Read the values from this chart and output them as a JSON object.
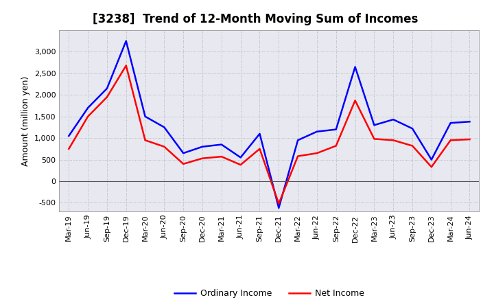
{
  "title": "[3238]  Trend of 12-Month Moving Sum of Incomes",
  "ylabel": "Amount (million yen)",
  "x_labels": [
    "Mar-19",
    "Jun-19",
    "Sep-19",
    "Dec-19",
    "Mar-20",
    "Jun-20",
    "Sep-20",
    "Dec-20",
    "Mar-21",
    "Jun-21",
    "Sep-21",
    "Dec-21",
    "Mar-22",
    "Jun-22",
    "Sep-22",
    "Dec-22",
    "Mar-23",
    "Jun-23",
    "Sep-23",
    "Dec-23",
    "Mar-24",
    "Jun-24"
  ],
  "ordinary_income_full": [
    1050,
    1700,
    2150,
    3250,
    1500,
    1250,
    650,
    800,
    850,
    550,
    1100,
    -620,
    950,
    1150,
    1200,
    2650,
    1300,
    1430,
    1220,
    500,
    1350,
    1380
  ],
  "net_income_full": [
    750,
    1500,
    1950,
    2680,
    950,
    800,
    400,
    530,
    570,
    380,
    750,
    -520,
    580,
    650,
    820,
    1870,
    980,
    950,
    820,
    330,
    950,
    970
  ],
  "ordinary_color": "#0000ff",
  "net_color": "#ff0000",
  "plot_bg_color": "#e8e8f0",
  "fig_bg_color": "#ffffff",
  "grid_color": "#999999",
  "ylim": [
    -700,
    3500
  ],
  "yticks": [
    -500,
    0,
    500,
    1000,
    1500,
    2000,
    2500,
    3000
  ],
  "title_fontsize": 12,
  "axis_label_fontsize": 9,
  "tick_fontsize": 8,
  "legend_fontsize": 9,
  "line_width": 1.8
}
